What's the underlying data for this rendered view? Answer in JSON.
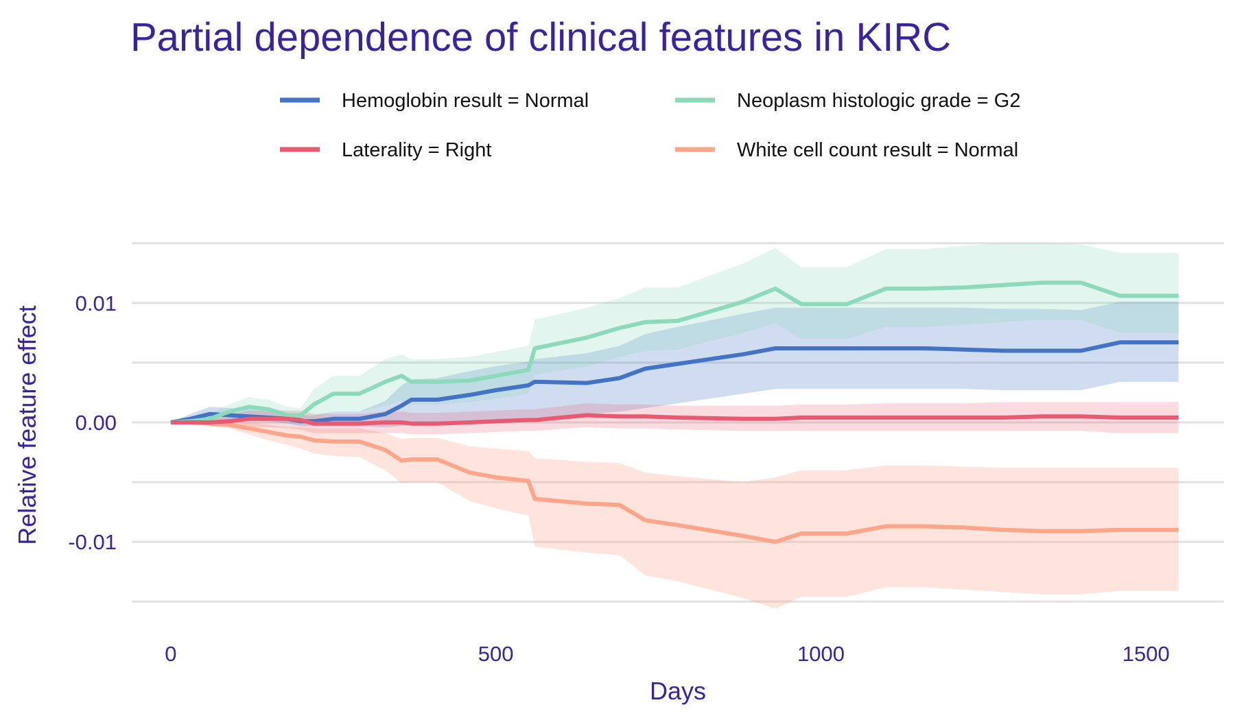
{
  "chart_data": {
    "type": "line",
    "title": "Partial dependence of clinical features in KIRC",
    "xlabel": "Days",
    "ylabel": "Relative feature effect",
    "xlim": [
      -60,
      1620
    ],
    "ylim": [
      -0.0155,
      0.0155
    ],
    "x_ticks": [
      0,
      500,
      1000,
      1500
    ],
    "x_tick_labels": [
      "0",
      "500",
      "1000",
      "1500"
    ],
    "y_ticks": [
      -0.01,
      0,
      0.01
    ],
    "y_tick_labels": [
      "-0.01",
      "0.00",
      "0.01"
    ],
    "y_minor_grid": [
      -0.015,
      -0.005,
      0.005,
      0.015
    ],
    "grid": true,
    "legend_position": "top",
    "x": [
      0,
      30,
      60,
      90,
      120,
      150,
      180,
      200,
      220,
      250,
      290,
      330,
      355,
      370,
      410,
      460,
      500,
      550,
      560,
      640,
      690,
      730,
      780,
      880,
      930,
      970,
      1040,
      1100,
      1160,
      1220,
      1280,
      1340,
      1400,
      1460,
      1550
    ],
    "series": [
      {
        "name": "Hemoglobin result = Normal",
        "color": "#4472c4",
        "band_color": "rgba(68,114,196,0.25)",
        "values": [
          0,
          0.0003,
          0.0007,
          0.0006,
          0.0005,
          0.0004,
          0.0003,
          0.0001,
          0.0001,
          0.0003,
          0.0003,
          0.0007,
          0.0014,
          0.0019,
          0.0019,
          0.0023,
          0.0027,
          0.0031,
          0.0034,
          0.0033,
          0.0037,
          0.0045,
          0.0049,
          0.0057,
          0.0062,
          0.0062,
          0.0062,
          0.0062,
          0.0062,
          0.0061,
          0.006,
          0.006,
          0.006,
          0.0067,
          0.0067
        ],
        "lower": [
          0,
          -0.0001,
          0.0001,
          0.0001,
          0.0001,
          0.0001,
          -0.0001,
          -0.0003,
          -0.0003,
          -0.0003,
          -0.0003,
          -0.0004,
          -0.0003,
          -0.0002,
          -0.0001,
          0.0,
          0.0002,
          0.0003,
          0.0004,
          0.0007,
          0.0009,
          0.0012,
          0.0016,
          0.0024,
          0.0028,
          0.0028,
          0.0028,
          0.0028,
          0.0028,
          0.0028,
          0.0027,
          0.0027,
          0.0027,
          0.0034,
          0.0034
        ],
        "upper": [
          0,
          0.0007,
          0.0013,
          0.0012,
          0.0011,
          0.0009,
          0.0007,
          0.0006,
          0.0006,
          0.0009,
          0.0009,
          0.0018,
          0.0031,
          0.0036,
          0.0037,
          0.0043,
          0.0047,
          0.0051,
          0.0053,
          0.0058,
          0.0064,
          0.0074,
          0.008,
          0.0091,
          0.0096,
          0.0096,
          0.0096,
          0.0096,
          0.0096,
          0.0096,
          0.0095,
          0.0095,
          0.0094,
          0.0101,
          0.0101
        ]
      },
      {
        "name": "Neoplasm histologic grade = G2",
        "color": "#8dd9bc",
        "band_color": "rgba(141,217,188,0.25)",
        "values": [
          0,
          0.0001,
          0.0003,
          0.0009,
          0.0013,
          0.0011,
          0.0006,
          0.0006,
          0.0015,
          0.0024,
          0.0024,
          0.0034,
          0.0039,
          0.0034,
          0.0034,
          0.0035,
          0.0039,
          0.0044,
          0.0062,
          0.0071,
          0.0079,
          0.0084,
          0.0085,
          0.0101,
          0.0112,
          0.0099,
          0.0099,
          0.0112,
          0.0112,
          0.0113,
          0.0115,
          0.0117,
          0.0117,
          0.0106,
          0.0106
        ],
        "lower": [
          0,
          -0.0001,
          0.0,
          0.0003,
          0.0005,
          0.0003,
          0.0,
          0.0,
          0.0002,
          0.0009,
          0.0009,
          0.0014,
          0.0018,
          0.0015,
          0.0015,
          0.0017,
          0.002,
          0.0024,
          0.004,
          0.0047,
          0.0055,
          0.006,
          0.0061,
          0.0075,
          0.0083,
          0.007,
          0.007,
          0.008,
          0.008,
          0.0082,
          0.0084,
          0.0086,
          0.0086,
          0.0075,
          0.0075
        ],
        "upper": [
          0,
          0.0003,
          0.0008,
          0.0015,
          0.0021,
          0.0019,
          0.0013,
          0.0012,
          0.0028,
          0.0039,
          0.0039,
          0.0053,
          0.0057,
          0.0053,
          0.0053,
          0.0055,
          0.0059,
          0.0064,
          0.0086,
          0.0096,
          0.0104,
          0.0113,
          0.0113,
          0.0133,
          0.0146,
          0.013,
          0.013,
          0.0145,
          0.0145,
          0.0148,
          0.015,
          0.015,
          0.0149,
          0.0142,
          0.0142
        ]
      },
      {
        "name": "Laterality = Right",
        "color": "#e85a72",
        "band_color": "rgba(232,90,114,0.22)",
        "values": [
          0,
          0.0,
          0.0,
          0.0001,
          0.0003,
          0.0003,
          0.0003,
          0.0002,
          -0.0001,
          -0.0001,
          -0.0001,
          0.0,
          0.0,
          -0.0001,
          -0.0001,
          0.0,
          0.0001,
          0.0002,
          0.0002,
          0.0006,
          0.0005,
          0.0005,
          0.0004,
          0.0003,
          0.0003,
          0.0004,
          0.0004,
          0.0004,
          0.0004,
          0.0004,
          0.0004,
          0.0005,
          0.0005,
          0.0004,
          0.0004
        ],
        "lower": [
          0,
          -0.0001,
          -0.0002,
          -0.0004,
          -0.0004,
          -0.0004,
          -0.0005,
          -0.0006,
          -0.0009,
          -0.0009,
          -0.0009,
          -0.0009,
          -0.0009,
          -0.001,
          -0.001,
          -0.0009,
          -0.0008,
          -0.0007,
          -0.0007,
          -0.0004,
          -0.0005,
          -0.0005,
          -0.0006,
          -0.0007,
          -0.0007,
          -0.0007,
          -0.0007,
          -0.0007,
          -0.0007,
          -0.0007,
          -0.0007,
          -0.0007,
          -0.0007,
          -0.0009,
          -0.0009
        ],
        "upper": [
          0,
          0.0001,
          0.0002,
          0.0006,
          0.001,
          0.001,
          0.001,
          0.001,
          0.0007,
          0.0007,
          0.0007,
          0.0009,
          0.0009,
          0.0008,
          0.0008,
          0.0009,
          0.001,
          0.0011,
          0.0011,
          0.0016,
          0.0015,
          0.0015,
          0.0014,
          0.0014,
          0.0014,
          0.0015,
          0.0015,
          0.0016,
          0.0016,
          0.0016,
          0.0017,
          0.0017,
          0.0017,
          0.0017,
          0.0017
        ]
      },
      {
        "name": "White cell count result = Normal",
        "color": "#fda58b",
        "band_color": "rgba(253,165,139,0.30)",
        "values": [
          0,
          0.0,
          -0.0001,
          -0.0002,
          -0.0005,
          -0.0008,
          -0.0011,
          -0.0012,
          -0.0015,
          -0.0016,
          -0.0016,
          -0.0023,
          -0.0032,
          -0.0031,
          -0.0031,
          -0.0042,
          -0.0046,
          -0.0049,
          -0.0064,
          -0.0068,
          -0.0069,
          -0.0082,
          -0.0086,
          -0.0095,
          -0.01,
          -0.0093,
          -0.0093,
          -0.0087,
          -0.0087,
          -0.0088,
          -0.009,
          -0.0091,
          -0.0091,
          -0.009,
          -0.009
        ],
        "lower": [
          0,
          -0.0001,
          -0.0003,
          -0.0005,
          -0.001,
          -0.0015,
          -0.0019,
          -0.0022,
          -0.0026,
          -0.0028,
          -0.0029,
          -0.004,
          -0.0051,
          -0.005,
          -0.005,
          -0.0066,
          -0.0072,
          -0.0078,
          -0.0104,
          -0.0109,
          -0.0111,
          -0.0128,
          -0.0133,
          -0.0147,
          -0.0156,
          -0.0146,
          -0.0146,
          -0.0138,
          -0.0138,
          -0.014,
          -0.0142,
          -0.0144,
          -0.0144,
          -0.0141,
          -0.0141
        ],
        "upper": [
          0,
          0.0001,
          0.0001,
          0.0001,
          0.0,
          -0.0002,
          -0.0004,
          -0.0004,
          -0.0005,
          -0.0005,
          -0.0005,
          -0.0009,
          -0.0014,
          -0.0013,
          -0.0013,
          -0.002,
          -0.0022,
          -0.0024,
          -0.003,
          -0.0033,
          -0.0034,
          -0.0042,
          -0.0045,
          -0.005,
          -0.0046,
          -0.004,
          -0.004,
          -0.0036,
          -0.0036,
          -0.0037,
          -0.0038,
          -0.0038,
          -0.0038,
          -0.0038,
          -0.0038
        ]
      }
    ],
    "legend_order": [
      0,
      1,
      2,
      3
    ]
  }
}
